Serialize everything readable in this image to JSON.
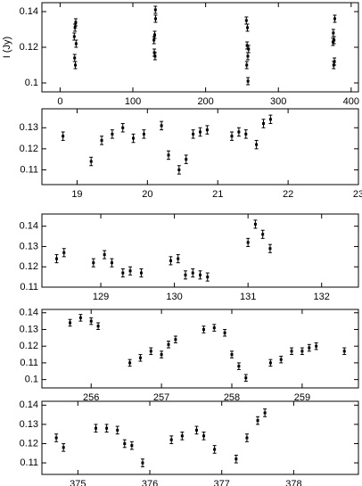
{
  "chart_data": [
    {
      "type": "scatter",
      "ylabel": "I (Jy)",
      "color": "#000000",
      "x": [
        19.5,
        20.0,
        20.5,
        21.0,
        21.5,
        22.0,
        129.0,
        129.5,
        130.0,
        130.5,
        131.0,
        131.2,
        256.0,
        256.5,
        257.0,
        257.5,
        258.0,
        258.2,
        259.0,
        375.0,
        375.5,
        376.0,
        376.5,
        377.0,
        377.5
      ],
      "values": [
        0.126,
        0.114,
        0.131,
        0.11,
        0.134,
        0.122,
        0.124,
        0.117,
        0.127,
        0.115,
        0.141,
        0.136,
        0.135,
        0.11,
        0.121,
        0.131,
        0.115,
        0.101,
        0.119,
        0.123,
        0.128,
        0.11,
        0.124,
        0.112,
        0.136
      ],
      "errors": [
        0.002,
        0.002,
        0.002,
        0.002,
        0.002,
        0.002,
        0.002,
        0.002,
        0.002,
        0.002,
        0.002,
        0.002,
        0.002,
        0.002,
        0.002,
        0.002,
        0.002,
        0.002,
        0.002,
        0.002,
        0.002,
        0.002,
        0.002,
        0.002,
        0.002
      ],
      "xlim": [
        -25,
        410
      ],
      "xticks": [
        0,
        100,
        200,
        300,
        400
      ],
      "ylim": [
        0.095,
        0.145
      ],
      "yticks": [
        0.1,
        0.12,
        0.14
      ]
    },
    {
      "type": "scatter",
      "color": "#000000",
      "x": [
        18.8,
        19.2,
        19.35,
        19.5,
        19.65,
        19.8,
        19.95,
        20.2,
        20.3,
        20.45,
        20.55,
        20.65,
        20.75,
        20.85,
        21.2,
        21.3,
        21.4,
        21.55,
        21.65,
        21.75
      ],
      "values": [
        0.126,
        0.114,
        0.124,
        0.127,
        0.13,
        0.125,
        0.127,
        0.131,
        0.117,
        0.11,
        0.115,
        0.127,
        0.128,
        0.129,
        0.126,
        0.128,
        0.127,
        0.122,
        0.132,
        0.134
      ],
      "errors": [
        0.002,
        0.002,
        0.002,
        0.002,
        0.002,
        0.002,
        0.002,
        0.002,
        0.002,
        0.002,
        0.002,
        0.002,
        0.002,
        0.002,
        0.002,
        0.002,
        0.002,
        0.002,
        0.002,
        0.002
      ],
      "xlim": [
        18.5,
        23
      ],
      "xticks": [
        19,
        20,
        21,
        22,
        23
      ],
      "ylim": [
        0.103,
        0.139
      ],
      "yticks": [
        0.11,
        0.12,
        0.13
      ]
    },
    {
      "type": "scatter",
      "color": "#000000",
      "x": [
        128.4,
        128.5,
        128.9,
        129.05,
        129.15,
        129.3,
        129.4,
        129.55,
        129.95,
        130.05,
        130.15,
        130.25,
        130.35,
        130.45,
        131.0,
        131.1,
        131.2,
        131.3
      ],
      "values": [
        0.124,
        0.127,
        0.122,
        0.126,
        0.122,
        0.117,
        0.118,
        0.117,
        0.123,
        0.124,
        0.116,
        0.117,
        0.116,
        0.115,
        0.132,
        0.141,
        0.136,
        0.129
      ],
      "errors": [
        0.002,
        0.002,
        0.002,
        0.002,
        0.002,
        0.002,
        0.002,
        0.002,
        0.002,
        0.002,
        0.002,
        0.002,
        0.002,
        0.002,
        0.002,
        0.002,
        0.002,
        0.002
      ],
      "xlim": [
        128.2,
        132.5
      ],
      "xticks": [
        129,
        130,
        131,
        132
      ],
      "ylim": [
        0.11,
        0.146
      ],
      "yticks": [
        0.11,
        0.12,
        0.13,
        0.14
      ]
    },
    {
      "type": "scatter",
      "color": "#000000",
      "x": [
        255.7,
        255.85,
        256.0,
        256.1,
        256.55,
        256.7,
        256.85,
        257.0,
        257.1,
        257.2,
        257.6,
        257.75,
        257.9,
        258.0,
        258.1,
        258.2,
        258.55,
        258.7,
        258.85,
        259.0,
        259.1,
        259.2,
        259.6
      ],
      "values": [
        0.134,
        0.137,
        0.135,
        0.132,
        0.11,
        0.113,
        0.117,
        0.115,
        0.121,
        0.124,
        0.13,
        0.131,
        0.128,
        0.115,
        0.108,
        0.101,
        0.11,
        0.112,
        0.117,
        0.117,
        0.119,
        0.12,
        0.117
      ],
      "errors": [
        0.002,
        0.002,
        0.002,
        0.002,
        0.002,
        0.002,
        0.002,
        0.002,
        0.002,
        0.002,
        0.002,
        0.002,
        0.002,
        0.002,
        0.002,
        0.002,
        0.002,
        0.002,
        0.002,
        0.002,
        0.002,
        0.002,
        0.002
      ],
      "xlim": [
        255.3,
        259.8
      ],
      "xticks": [
        256,
        257,
        258,
        259
      ],
      "ylim": [
        0.095,
        0.142
      ],
      "yticks": [
        0.1,
        0.11,
        0.12,
        0.13,
        0.14
      ]
    },
    {
      "type": "scatter",
      "color": "#000000",
      "x": [
        374.7,
        374.8,
        375.25,
        375.4,
        375.55,
        375.65,
        375.75,
        375.9,
        376.3,
        376.45,
        376.65,
        376.75,
        376.9,
        377.2,
        377.35,
        377.5,
        377.6
      ],
      "values": [
        0.123,
        0.118,
        0.128,
        0.128,
        0.127,
        0.12,
        0.119,
        0.11,
        0.122,
        0.124,
        0.127,
        0.124,
        0.117,
        0.112,
        0.123,
        0.132,
        0.136
      ],
      "errors": [
        0.002,
        0.002,
        0.002,
        0.002,
        0.002,
        0.002,
        0.002,
        0.002,
        0.002,
        0.002,
        0.002,
        0.002,
        0.002,
        0.002,
        0.002,
        0.002,
        0.002
      ],
      "xlim": [
        374.5,
        378.9
      ],
      "xticks": [
        375,
        376,
        377,
        378
      ],
      "ylim": [
        0.104,
        0.142
      ],
      "yticks": [
        0.11,
        0.12,
        0.13,
        0.14
      ]
    }
  ]
}
